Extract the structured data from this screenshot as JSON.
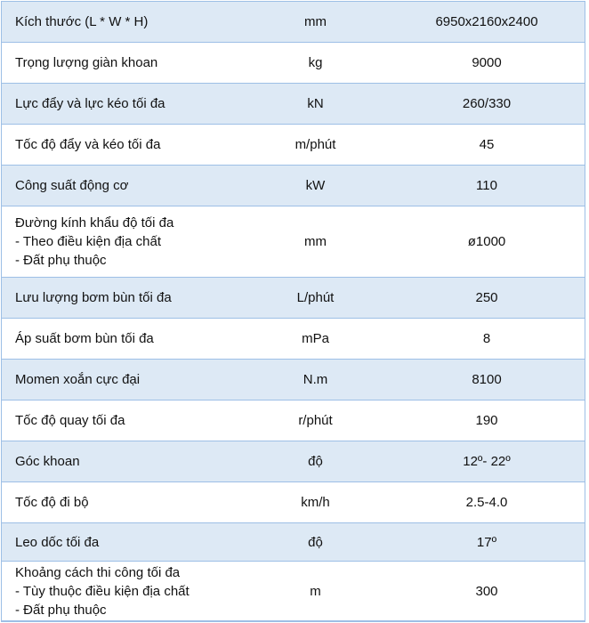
{
  "colors": {
    "row_alt": "#dde9f5",
    "border": "#9dbfe6"
  },
  "rows": [
    {
      "label": [
        "Kích thước (L * W * H)"
      ],
      "unit": "mm",
      "value": "6950x2160x2400"
    },
    {
      "label": [
        "Trọng lượng giàn khoan"
      ],
      "unit": "kg",
      "value": "9000"
    },
    {
      "label": [
        "Lực đẩy và lực kéo tối đa"
      ],
      "unit": "kN",
      "value": "260/330"
    },
    {
      "label": [
        "Tốc độ đẩy và kéo tối đa"
      ],
      "unit": "m/phút",
      "value": "45"
    },
    {
      "label": [
        "Công suất động cơ"
      ],
      "unit": "kW",
      "value": "110"
    },
    {
      "label": [
        "Đường kính khẩu độ tối đa",
        "- Theo điều kiện địa chất",
        "- Đất phụ thuộc"
      ],
      "unit": "mm",
      "value": "ø1000"
    },
    {
      "label": [
        "Lưu lượng bơm bùn tối đa"
      ],
      "unit": "L/phút",
      "value": "250"
    },
    {
      "label": [
        "Áp suất bơm bùn tối đa"
      ],
      "unit": "mPa",
      "value": "8"
    },
    {
      "label": [
        "Momen xoắn cực đại"
      ],
      "unit": "N.m",
      "value": "8100"
    },
    {
      "label": [
        "Tốc độ quay tối đa"
      ],
      "unit": "r/phút",
      "value": "190"
    },
    {
      "label": [
        "Góc khoan"
      ],
      "unit": "độ",
      "value": "12º- 22º"
    },
    {
      "label": [
        "Tốc độ đi bộ"
      ],
      "unit": "km/h",
      "value": "2.5-4.0"
    },
    {
      "label": [
        "Leo dốc tối đa"
      ],
      "unit": "độ",
      "value": "17º"
    },
    {
      "label": [
        "Khoảng cách thi công tối đa",
        "- Tùy thuộc điều kiện địa chất",
        "- Đất phụ thuộc"
      ],
      "unit": "m",
      "value": "300"
    }
  ]
}
